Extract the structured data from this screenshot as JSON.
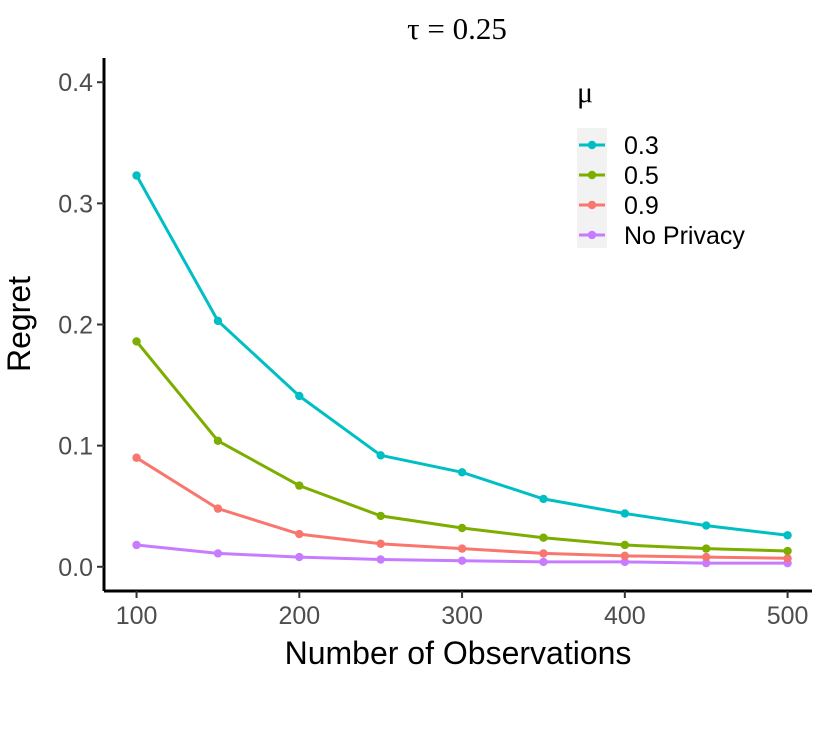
{
  "chart_data": {
    "type": "line",
    "title": "τ = 0.25",
    "xlabel": "Number of Observations",
    "ylabel": "Regret",
    "x": [
      100,
      150,
      200,
      250,
      300,
      350,
      400,
      450,
      500
    ],
    "xlim": [
      80,
      515
    ],
    "ylim": [
      -0.02,
      0.42
    ],
    "xticks": [
      100,
      200,
      300,
      400,
      500
    ],
    "yticks": [
      0.0,
      0.1,
      0.2,
      0.3,
      0.4
    ],
    "ytick_labels": [
      "0.0",
      "0.1",
      "0.2",
      "0.3",
      "0.4"
    ],
    "grid": false,
    "legend": {
      "title": "μ",
      "position": "top-right"
    },
    "series": [
      {
        "name": "0.3",
        "color": "#00BFC4",
        "values": [
          0.323,
          0.203,
          0.141,
          0.092,
          0.078,
          0.056,
          0.044,
          0.034,
          0.026
        ]
      },
      {
        "name": "0.5",
        "color": "#7CAE00",
        "values": [
          0.186,
          0.104,
          0.067,
          0.042,
          0.032,
          0.024,
          0.018,
          0.015,
          0.013
        ]
      },
      {
        "name": "0.9",
        "color": "#F8766D",
        "values": [
          0.09,
          0.048,
          0.027,
          0.019,
          0.015,
          0.011,
          0.009,
          0.008,
          0.007
        ]
      },
      {
        "name": "No Privacy",
        "color": "#C77CFF",
        "values": [
          0.018,
          0.011,
          0.008,
          0.006,
          0.005,
          0.004,
          0.004,
          0.003,
          0.003
        ]
      }
    ]
  }
}
